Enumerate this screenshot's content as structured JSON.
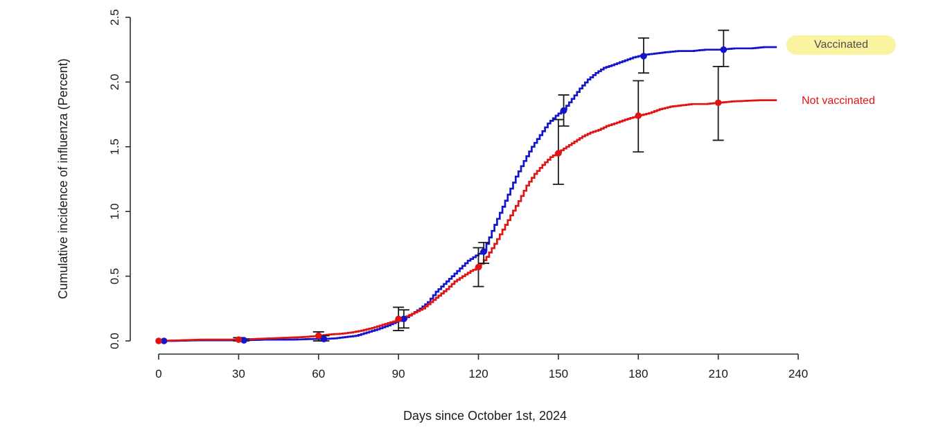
{
  "figure": {
    "background": "#ffffff"
  },
  "colors": {
    "vaccinated_line": "#1414cc",
    "not_vaccinated_line": "#e01414",
    "highlight_pill": "#faf3a0",
    "legend_vaccinated_text": "#4d4d4d",
    "legend_not_vaccinated_text": "#e01414",
    "error_bar": "#1a1a1a",
    "axis": "#2b2b2b"
  },
  "chart_data": {
    "type": "line",
    "subtype": "step-cumulative-incidence",
    "title": "",
    "xlabel": "Days since October 1st, 2024",
    "ylabel": "Cumulative incidence of influenza (Percent)",
    "xlim": [
      0,
      240
    ],
    "ylim": [
      0,
      2.5
    ],
    "grid": false,
    "legend_position": "right-end-labels",
    "x_tick_labels": [
      "0",
      "30",
      "60",
      "90",
      "120",
      "150",
      "180",
      "210",
      "240"
    ],
    "x_tick_values": [
      0,
      30,
      60,
      90,
      120,
      150,
      180,
      210,
      240
    ],
    "y_tick_labels": [
      "0.0",
      "0.5",
      "1.0",
      "1.5",
      "2.0",
      "2.5"
    ],
    "y_tick_values": [
      0,
      0.5,
      1.0,
      1.5,
      2.0,
      2.5
    ],
    "series": [
      {
        "name": "Vaccinated",
        "color": "#1414cc",
        "curve": [
          [
            0,
            0
          ],
          [
            5,
            0
          ],
          [
            15,
            0.005
          ],
          [
            25,
            0.005
          ],
          [
            32,
            0.005
          ],
          [
            40,
            0.01
          ],
          [
            50,
            0.01
          ],
          [
            58,
            0.015
          ],
          [
            62,
            0.015
          ],
          [
            66,
            0.02
          ],
          [
            70,
            0.03
          ],
          [
            74,
            0.04
          ],
          [
            78,
            0.065
          ],
          [
            82,
            0.09
          ],
          [
            86,
            0.12
          ],
          [
            90,
            0.155
          ],
          [
            92,
            0.17
          ],
          [
            95,
            0.21
          ],
          [
            98,
            0.25
          ],
          [
            101,
            0.3
          ],
          [
            104,
            0.38
          ],
          [
            107,
            0.44
          ],
          [
            110,
            0.5
          ],
          [
            113,
            0.56
          ],
          [
            116,
            0.62
          ],
          [
            119,
            0.66
          ],
          [
            122,
            0.7
          ],
          [
            125,
            0.85
          ],
          [
            128,
            0.99
          ],
          [
            131,
            1.13
          ],
          [
            134,
            1.27
          ],
          [
            137,
            1.39
          ],
          [
            140,
            1.5
          ],
          [
            143,
            1.59
          ],
          [
            146,
            1.68
          ],
          [
            149,
            1.74
          ],
          [
            152,
            1.79
          ],
          [
            155,
            1.87
          ],
          [
            158,
            1.95
          ],
          [
            161,
            2.02
          ],
          [
            164,
            2.07
          ],
          [
            167,
            2.11
          ],
          [
            170,
            2.13
          ],
          [
            174,
            2.16
          ],
          [
            178,
            2.19
          ],
          [
            182,
            2.21
          ],
          [
            186,
            2.22
          ],
          [
            190,
            2.23
          ],
          [
            195,
            2.24
          ],
          [
            200,
            2.24
          ],
          [
            205,
            2.25
          ],
          [
            210,
            2.25
          ],
          [
            216,
            2.26
          ],
          [
            222,
            2.26
          ],
          [
            227,
            2.27
          ],
          [
            232,
            2.27
          ]
        ],
        "points_with_ci": [
          {
            "x": 2,
            "y": 0,
            "lo": null,
            "hi": null
          },
          {
            "x": 32,
            "y": 0.005,
            "lo": 0,
            "hi": 0.015
          },
          {
            "x": 62,
            "y": 0.015,
            "lo": 0,
            "hi": 0.04
          },
          {
            "x": 92,
            "y": 0.17,
            "lo": 0.1,
            "hi": 0.24
          },
          {
            "x": 122,
            "y": 0.69,
            "lo": 0.6,
            "hi": 0.76
          },
          {
            "x": 152,
            "y": 1.78,
            "lo": 1.66,
            "hi": 1.9
          },
          {
            "x": 182,
            "y": 2.2,
            "lo": 2.07,
            "hi": 2.34
          },
          {
            "x": 212,
            "y": 2.25,
            "lo": 2.12,
            "hi": 2.4
          }
        ]
      },
      {
        "name": "Not vaccinated",
        "color": "#e01414",
        "curve": [
          [
            0,
            0
          ],
          [
            8,
            0.005
          ],
          [
            16,
            0.01
          ],
          [
            24,
            0.01
          ],
          [
            30,
            0.01
          ],
          [
            36,
            0.015
          ],
          [
            42,
            0.02
          ],
          [
            48,
            0.025
          ],
          [
            54,
            0.03
          ],
          [
            60,
            0.04
          ],
          [
            64,
            0.05
          ],
          [
            68,
            0.055
          ],
          [
            72,
            0.065
          ],
          [
            76,
            0.08
          ],
          [
            80,
            0.1
          ],
          [
            84,
            0.125
          ],
          [
            88,
            0.15
          ],
          [
            90,
            0.165
          ],
          [
            93,
            0.19
          ],
          [
            96,
            0.22
          ],
          [
            99,
            0.25
          ],
          [
            102,
            0.3
          ],
          [
            105,
            0.35
          ],
          [
            108,
            0.4
          ],
          [
            111,
            0.46
          ],
          [
            114,
            0.5
          ],
          [
            117,
            0.54
          ],
          [
            120,
            0.57
          ],
          [
            123,
            0.65
          ],
          [
            126,
            0.75
          ],
          [
            129,
            0.86
          ],
          [
            132,
            0.97
          ],
          [
            135,
            1.08
          ],
          [
            138,
            1.2
          ],
          [
            141,
            1.29
          ],
          [
            144,
            1.36
          ],
          [
            147,
            1.42
          ],
          [
            150,
            1.46
          ],
          [
            153,
            1.5
          ],
          [
            156,
            1.54
          ],
          [
            159,
            1.58
          ],
          [
            162,
            1.61
          ],
          [
            165,
            1.63
          ],
          [
            168,
            1.66
          ],
          [
            171,
            1.68
          ],
          [
            175,
            1.71
          ],
          [
            180,
            1.74
          ],
          [
            184,
            1.76
          ],
          [
            188,
            1.79
          ],
          [
            192,
            1.81
          ],
          [
            196,
            1.82
          ],
          [
            200,
            1.83
          ],
          [
            205,
            1.83
          ],
          [
            210,
            1.84
          ],
          [
            215,
            1.85
          ],
          [
            220,
            1.855
          ],
          [
            226,
            1.86
          ],
          [
            232,
            1.86
          ]
        ],
        "points_with_ci": [
          {
            "x": 0,
            "y": 0,
            "lo": null,
            "hi": null
          },
          {
            "x": 30,
            "y": 0.01,
            "lo": 0,
            "hi": 0.025
          },
          {
            "x": 60,
            "y": 0.04,
            "lo": 0,
            "hi": 0.07
          },
          {
            "x": 90,
            "y": 0.17,
            "lo": 0.08,
            "hi": 0.26
          },
          {
            "x": 120,
            "y": 0.57,
            "lo": 0.42,
            "hi": 0.72
          },
          {
            "x": 150,
            "y": 1.45,
            "lo": 1.21,
            "hi": 1.71
          },
          {
            "x": 180,
            "y": 1.74,
            "lo": 1.46,
            "hi": 2.01
          },
          {
            "x": 210,
            "y": 1.84,
            "lo": 1.55,
            "hi": 2.12
          }
        ]
      }
    ],
    "annotations": [
      {
        "text": "Vaccinated",
        "style": "yellow-highlight-pill"
      },
      {
        "text": "Not vaccinated",
        "style": "red-text"
      }
    ]
  },
  "legend": {
    "vaccinated_label": "Vaccinated",
    "not_vaccinated_label": "Not vaccinated"
  }
}
